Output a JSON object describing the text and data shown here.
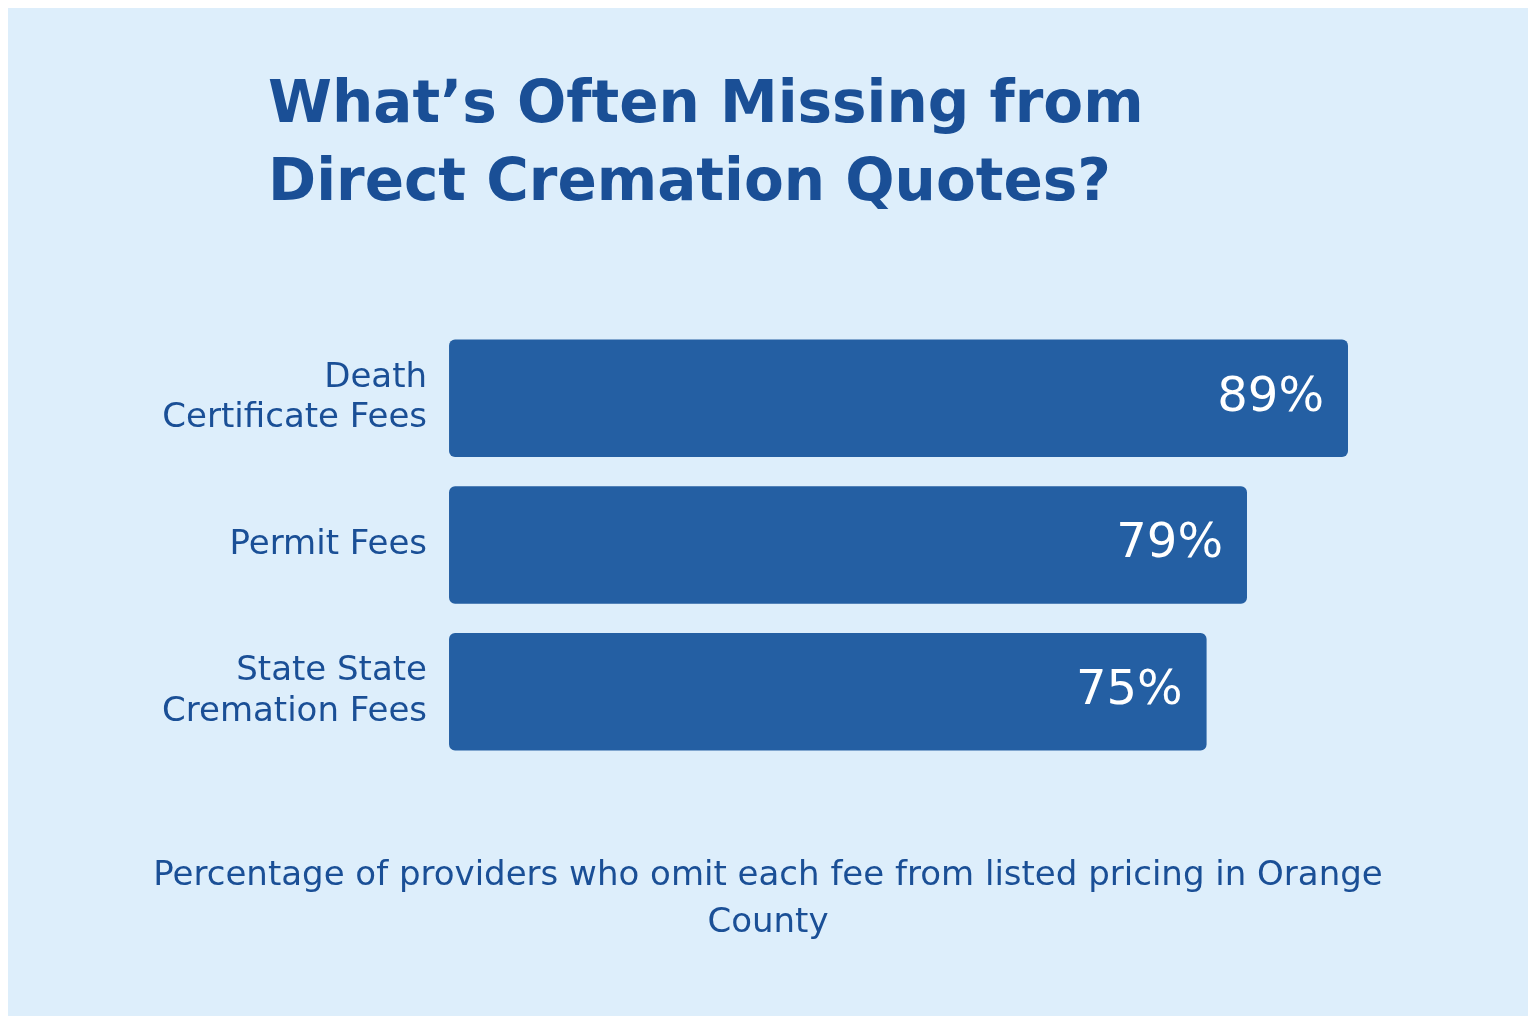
{
  "chart_data": {
    "type": "bar",
    "orientation": "horizontal",
    "title": "What’s Often Missing from Direct Cremation Quotes?",
    "categories": [
      "Death Certificate Fees",
      "Permit Fees",
      "State State Cremation Fees"
    ],
    "values": [
      89,
      79,
      75
    ],
    "value_labels": [
      "89%",
      "79%",
      "75%"
    ],
    "color": "#245fa3",
    "legend": false,
    "tick_labels": "y",
    "annotations": [
      "Percentage of providers who omit each fee from listed pricing in Orange County"
    ]
  }
}
